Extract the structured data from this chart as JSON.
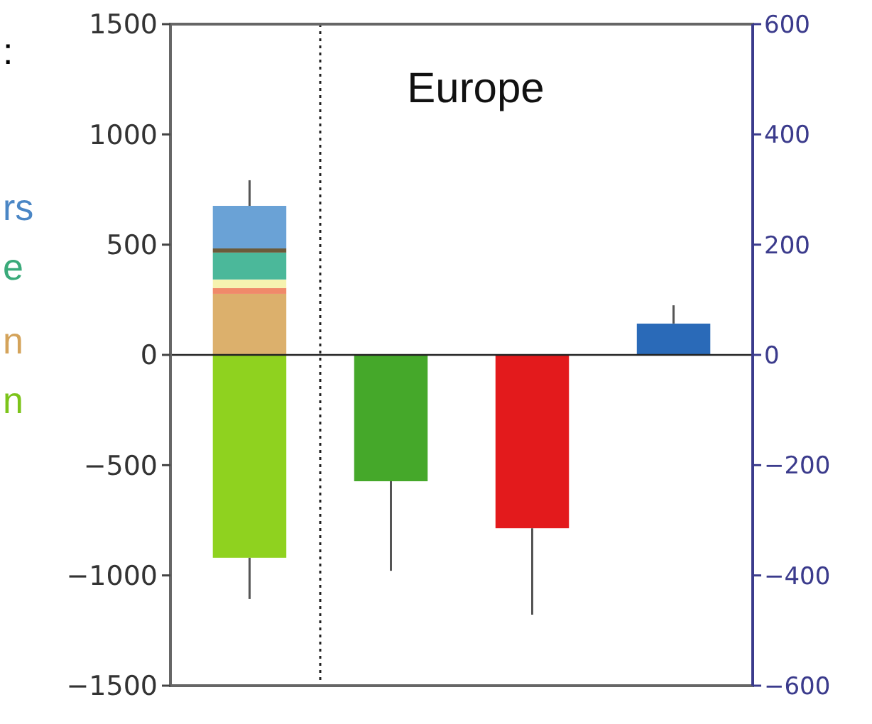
{
  "chart_data": {
    "type": "bar",
    "stacked": true,
    "categories": [
      null,
      null,
      null,
      null
    ],
    "series": [
      {
        "color": "#8fd21f",
        "values": [
          -920,
          null,
          null,
          null
        ],
        "errors": [
          [
            -1107,
            -920
          ],
          null,
          null,
          null
        ]
      },
      {
        "color": "#dcb06c",
        "values": [
          277,
          null,
          null,
          null
        ]
      },
      {
        "color": "#f08a6a",
        "values": [
          26,
          null,
          null,
          null
        ]
      },
      {
        "color": "#f6f3b0",
        "values": [
          39,
          null,
          null,
          null
        ]
      },
      {
        "color": "#4bb89a",
        "values": [
          122,
          null,
          null,
          null
        ]
      },
      {
        "color": "#6b5a3a",
        "values": [
          19,
          null,
          null,
          null
        ]
      },
      {
        "color": "#6aa2d6",
        "values": [
          193,
          null,
          null,
          null
        ],
        "errors": [
          [
            676,
            792
          ],
          null,
          null,
          null
        ]
      },
      {
        "color": "#45a82a",
        "values": [
          null,
          -573,
          null,
          null
        ],
        "errors": [
          null,
          [
            -979,
            -573
          ],
          null,
          null
        ]
      },
      {
        "color": "#e31a1c",
        "values": [
          null,
          null,
          -786,
          null
        ],
        "errors": [
          null,
          null,
          [
            -1178,
            -786
          ],
          null
        ]
      },
      {
        "color": "#2a6ab8",
        "values": [
          null,
          null,
          null,
          142
        ],
        "errors": [
          null,
          null,
          null,
          [
            142,
            225
          ]
        ]
      }
    ],
    "ylim": [
      -1500,
      1500
    ],
    "yticks": [
      -1500,
      -1000,
      -500,
      0,
      500,
      1000,
      1500
    ],
    "y2lim": [
      -600,
      600
    ],
    "y2ticks": [
      -600,
      -400,
      -200,
      0,
      200,
      400,
      600
    ],
    "annotations": [
      "Europe",
      ":",
      "rs",
      "e",
      "n",
      "n"
    ]
  }
}
